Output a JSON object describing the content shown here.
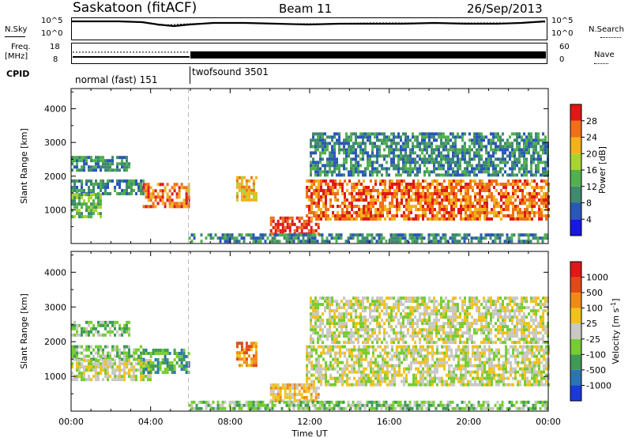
{
  "header": {
    "title": "Saskatoon (fitACF)",
    "beam": "Beam 11",
    "date": "26/Sep/2013"
  },
  "strip_labels": {
    "nsky": "N.Sky",
    "nsky_top": "10^5",
    "nsky_bottom": "10^0",
    "nsearch": "N.Search",
    "nsearch_top": "10^5",
    "nsearch_bottom": "10^0",
    "freq_line1": "Freq.",
    "freq_line2": "[MHz]",
    "freq_top": "18",
    "freq_bottom": "8",
    "nave": "Nave",
    "nave_top": "60",
    "nave_bottom": "0",
    "cpid": "CPID",
    "mode1": "normal (fast) 151",
    "mode2": "twofsound 3501"
  },
  "chart_data": [
    {
      "type": "heatmap",
      "name": "power",
      "ylabel": "Slant Range [km]",
      "yticks": [
        "1000",
        "2000",
        "3000",
        "4000"
      ],
      "ylim": [
        0,
        4600
      ],
      "xlim": [
        0,
        24
      ],
      "colorbar": {
        "label": "Power [dB]",
        "ticks": [
          "4",
          "8",
          "12",
          "16",
          "20",
          "24",
          "28"
        ],
        "colors": [
          "#1818e0",
          "#2a57b8",
          "#3f8a6e",
          "#52b04f",
          "#a8d433",
          "#f2b21c",
          "#f06f17",
          "#e01818"
        ]
      },
      "regions": [
        {
          "t0": 0.0,
          "t1": 2.9,
          "r0": 2150,
          "r1": 2600,
          "level": 2
        },
        {
          "t0": 0.0,
          "t1": 3.6,
          "r0": 1500,
          "r1": 1900,
          "level": 2
        },
        {
          "t0": 0.0,
          "t1": 1.5,
          "r0": 800,
          "r1": 1500,
          "level": 3
        },
        {
          "t0": 3.6,
          "t1": 5.9,
          "r0": 1100,
          "r1": 1800,
          "level": 6
        },
        {
          "t0": 8.3,
          "t1": 9.3,
          "r0": 1300,
          "r1": 2000,
          "level": 5
        },
        {
          "t0": 10.0,
          "t1": 12.5,
          "r0": 300,
          "r1": 800,
          "level": 7
        },
        {
          "t0": 11.8,
          "t1": 24.0,
          "r0": 750,
          "r1": 1900,
          "level": 6
        },
        {
          "t0": 12.0,
          "t1": 24.0,
          "r0": 2000,
          "r1": 3300,
          "level": 2
        },
        {
          "t0": 5.9,
          "t1": 24.0,
          "r0": 50,
          "r1": 300,
          "level": 2
        }
      ]
    },
    {
      "type": "heatmap",
      "name": "velocity",
      "ylabel": "Slant Range [km]",
      "xlabel": "Time UT",
      "yticks": [
        "1000",
        "2000",
        "3000",
        "4000"
      ],
      "xticks": [
        "00:00",
        "04:00",
        "08:00",
        "12:00",
        "16:00",
        "20:00",
        "00:00"
      ],
      "ylim": [
        0,
        4600
      ],
      "xlim": [
        0,
        24
      ],
      "colorbar": {
        "label": "Velocity [m s^-1]",
        "ticks": [
          "1000",
          "500",
          "100",
          "25",
          "-25",
          "-100",
          "-500",
          "-1000"
        ],
        "colors": [
          "#1a3ad6",
          "#2a74b6",
          "#3f9a56",
          "#77cc33",
          "#c8c8c4",
          "#f2c21c",
          "#f08a17",
          "#e04a18",
          "#e01818"
        ]
      },
      "regions": [
        {
          "t0": 0.0,
          "t1": 2.9,
          "r0": 2150,
          "r1": 2600,
          "level": 3
        },
        {
          "t0": 0.0,
          "t1": 3.6,
          "r0": 1500,
          "r1": 1900,
          "level": 3
        },
        {
          "t0": 0.0,
          "t1": 4.0,
          "r0": 900,
          "r1": 1500,
          "level": 4
        },
        {
          "t0": 3.6,
          "t1": 5.9,
          "r0": 1100,
          "r1": 1800,
          "level": 2
        },
        {
          "t0": 8.3,
          "t1": 9.3,
          "r0": 1300,
          "r1": 2000,
          "level": 6
        },
        {
          "t0": 10.0,
          "t1": 12.5,
          "r0": 300,
          "r1": 800,
          "level": 5
        },
        {
          "t0": 11.8,
          "t1": 24.0,
          "r0": 750,
          "r1": 1900,
          "level": 4
        },
        {
          "t0": 12.0,
          "t1": 24.0,
          "r0": 2000,
          "r1": 3300,
          "level": 4
        },
        {
          "t0": 5.9,
          "t1": 24.0,
          "r0": 50,
          "r1": 300,
          "level": 3
        }
      ]
    }
  ]
}
